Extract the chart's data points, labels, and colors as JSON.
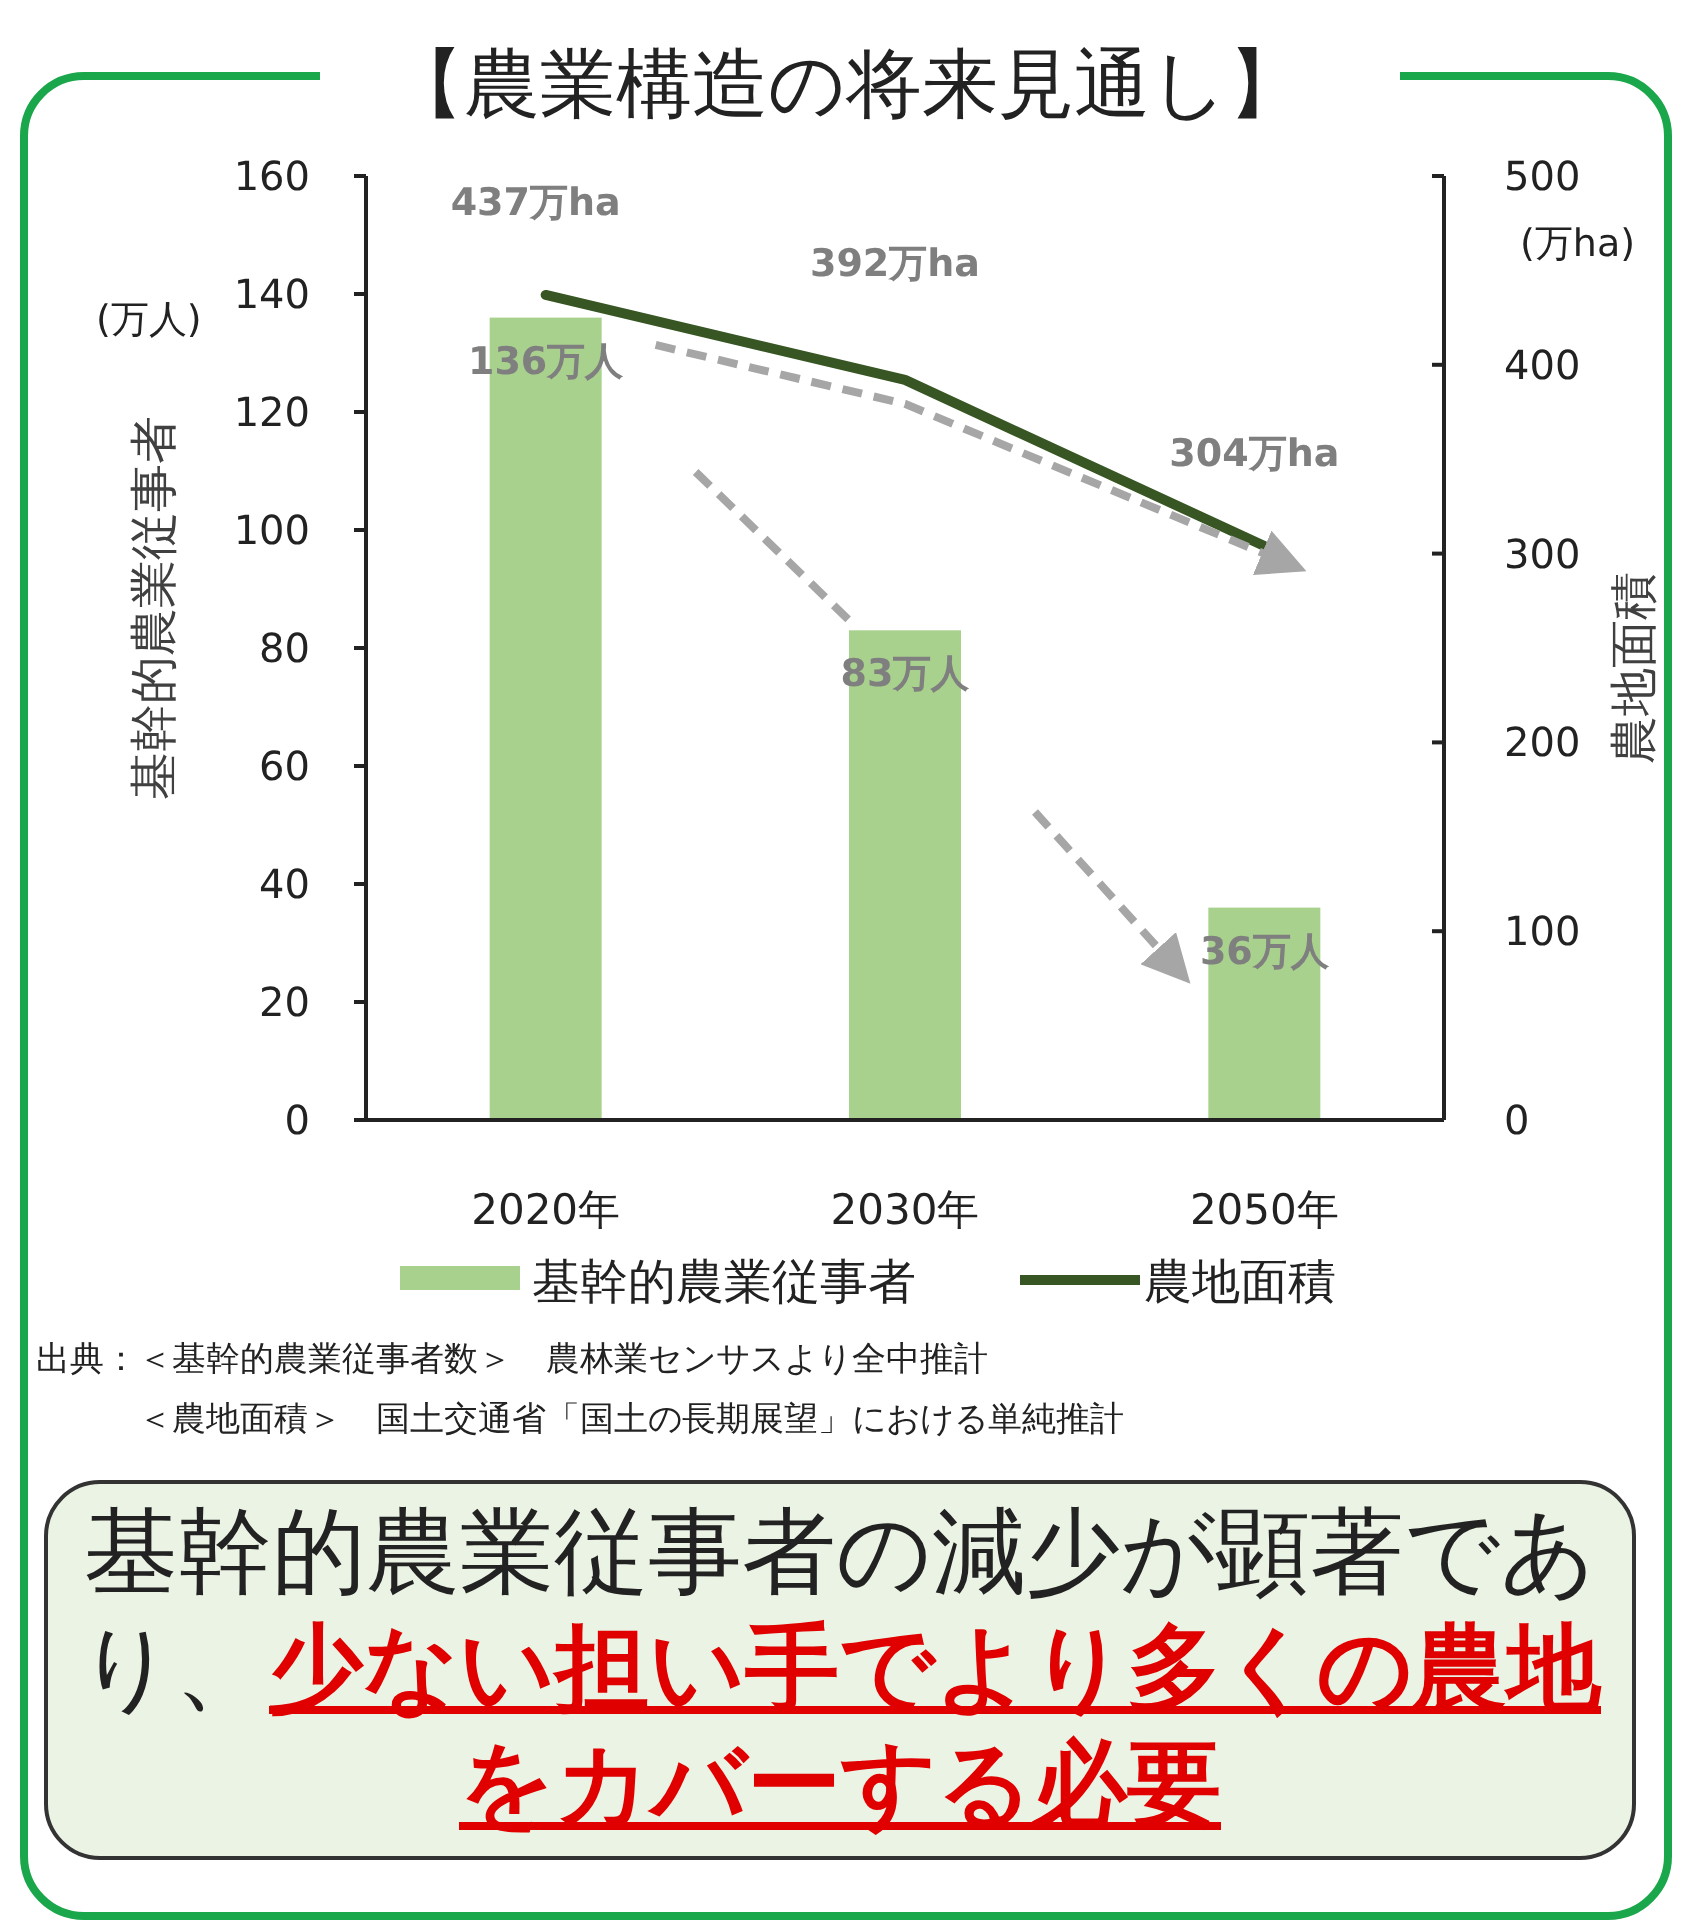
{
  "chart_data": {
    "type": "bar",
    "title": "【農業構造の将来見通し】",
    "categories": [
      "2020年",
      "2030年",
      "2050年"
    ],
    "series": [
      {
        "name": "基幹的農業従事者",
        "color": "#a9d18e",
        "values": [
          136,
          83,
          36
        ],
        "value_labels": [
          "136万人",
          "83万人",
          "36万人"
        ]
      },
      {
        "name": "農地面積",
        "type": "line",
        "axis": "y2",
        "color": "#375623",
        "values": [
          437,
          392,
          304
        ],
        "value_labels": [
          "437万ha",
          "392万ha",
          "304万ha"
        ]
      }
    ],
    "ylabel": "基幹的農業従事者",
    "y2label": "農地面積",
    "ylim": [
      0,
      160
    ],
    "yticks": [
      0,
      20,
      40,
      60,
      80,
      100,
      120,
      140,
      160
    ],
    "y2lim": [
      0,
      500
    ],
    "y2ticks": [
      0,
      100,
      200,
      300,
      400,
      500
    ],
    "grid": false,
    "legend": "bottom",
    "annotations": [
      "(万人)",
      "(万ha)",
      "出典：＜基幹的農業従事者数＞　農林業センサスより全中推計",
      "　　　＜農地面積＞　国土交通省「国土の長期展望」における単純推計",
      "基幹的農業従事者の減少が顕著であり、",
      "少ない担い手でより多くの農地をカバーする必要"
    ]
  }
}
